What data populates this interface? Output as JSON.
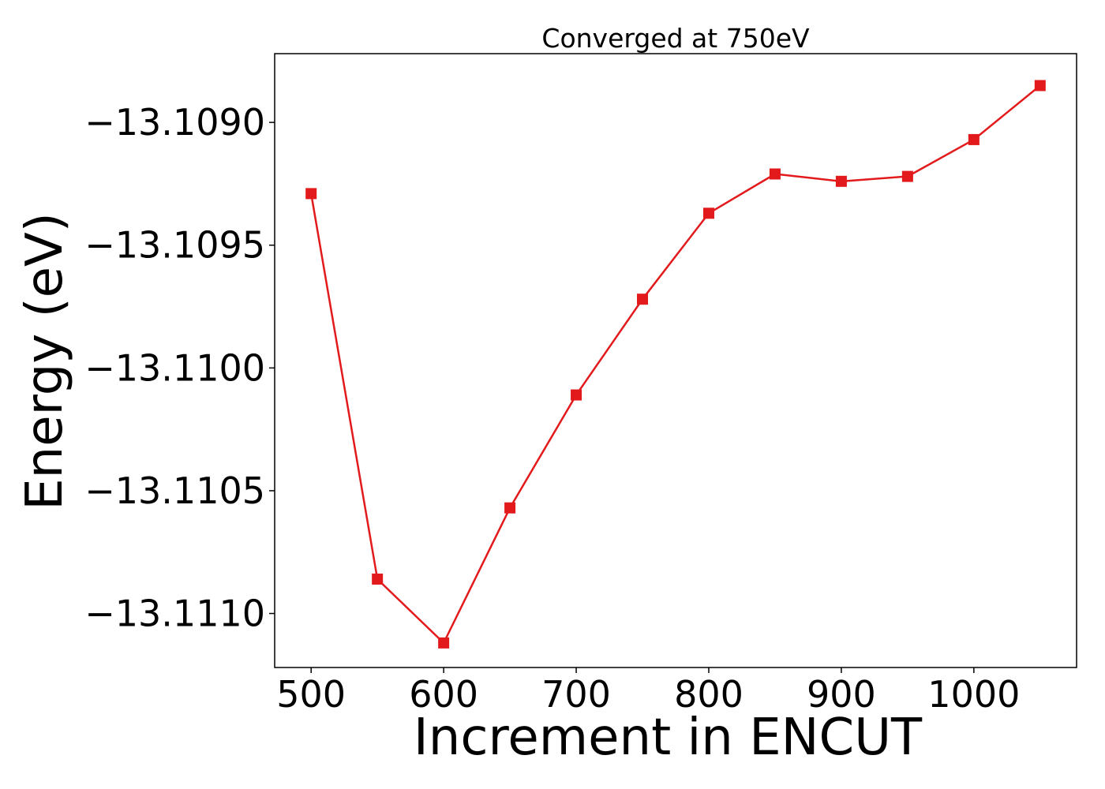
{
  "chart_data": {
    "type": "line",
    "title": "Converged at 750eV",
    "xlabel": "Increment in ENCUT",
    "ylabel": "Energy (eV)",
    "xlim": [
      472.5,
      1077.5
    ],
    "ylim": [
      -13.11122,
      -13.10872
    ],
    "xticks": [
      500,
      600,
      700,
      800,
      900,
      1000
    ],
    "xtick_labels": [
      "500",
      "600",
      "700",
      "800",
      "900",
      "1000"
    ],
    "yticks": [
      -13.109,
      -13.1095,
      -13.11,
      -13.1105,
      -13.111
    ],
    "ytick_labels": [
      "−13.1090",
      "−13.1095",
      "−13.1100",
      "−13.1105",
      "−13.1110"
    ],
    "grid": false,
    "marker": "square",
    "color": "#e31a1c",
    "series": [
      {
        "x": [
          500,
          550,
          600,
          650,
          700,
          750,
          800,
          850,
          900,
          950,
          1000,
          1050
        ],
        "y": [
          -13.10929,
          -13.11086,
          -13.11112,
          -13.11057,
          -13.11011,
          -13.10972,
          -13.10937,
          -13.10921,
          -13.10924,
          -13.10922,
          -13.10907,
          -13.10885
        ]
      }
    ]
  }
}
